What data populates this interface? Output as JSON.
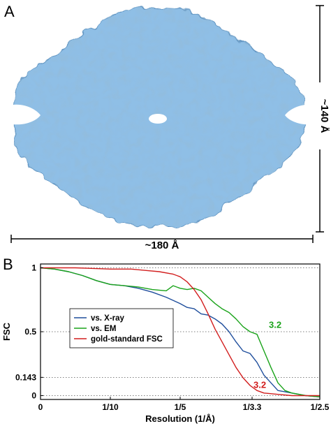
{
  "panels": {
    "a": {
      "letter": "A"
    },
    "b": {
      "letter": "B"
    }
  },
  "dimensions": {
    "width_label": "~180 Å",
    "height_label": "~140 Å"
  },
  "map_color": "#8fbfe6",
  "map_edge_color": "#5f93c0",
  "chart_data": {
    "type": "line",
    "xlabel": "Resolution (1/Å)",
    "ylabel": "FSC",
    "x_tick_labels": [
      "0",
      "1/10",
      "1/5",
      "1/3.3",
      "1/2.5"
    ],
    "x_tick_values": [
      0,
      0.1,
      0.2,
      0.303,
      0.4
    ],
    "xlim": [
      0,
      0.4
    ],
    "y_tick_labels": [
      "0",
      "0.143",
      "0.5",
      "1"
    ],
    "y_tick_values": [
      0,
      0.143,
      0.5,
      1
    ],
    "ylim": [
      -0.03,
      1.03
    ],
    "reference_lines": [
      0,
      0.143,
      0.5,
      1
    ],
    "legend_position": "left-center",
    "series": [
      {
        "name": "vs. X-ray",
        "color": "#1f4e9c",
        "x": [
          0,
          0.02,
          0.04,
          0.06,
          0.08,
          0.1,
          0.12,
          0.14,
          0.16,
          0.18,
          0.2,
          0.21,
          0.22,
          0.23,
          0.24,
          0.25,
          0.26,
          0.27,
          0.28,
          0.29,
          0.3,
          0.31,
          0.32,
          0.33,
          0.34,
          0.36,
          0.38,
          0.4
        ],
        "y": [
          1.0,
          0.99,
          0.97,
          0.94,
          0.9,
          0.87,
          0.86,
          0.84,
          0.81,
          0.77,
          0.72,
          0.69,
          0.68,
          0.64,
          0.63,
          0.6,
          0.56,
          0.5,
          0.42,
          0.35,
          0.33,
          0.26,
          0.16,
          0.1,
          0.04,
          0.02,
          0.0,
          -0.01
        ]
      },
      {
        "name": "vs. EM",
        "color": "#1aa31a",
        "x": [
          0,
          0.02,
          0.04,
          0.06,
          0.08,
          0.1,
          0.12,
          0.14,
          0.16,
          0.18,
          0.19,
          0.2,
          0.21,
          0.22,
          0.23,
          0.24,
          0.25,
          0.26,
          0.27,
          0.28,
          0.29,
          0.3,
          0.31,
          0.32,
          0.33,
          0.34,
          0.35,
          0.36,
          0.38,
          0.4
        ],
        "y": [
          1.0,
          0.99,
          0.97,
          0.94,
          0.9,
          0.87,
          0.86,
          0.85,
          0.83,
          0.82,
          0.86,
          0.84,
          0.83,
          0.84,
          0.82,
          0.77,
          0.72,
          0.68,
          0.65,
          0.6,
          0.54,
          0.5,
          0.48,
          0.35,
          0.22,
          0.1,
          0.04,
          0.02,
          0.0,
          -0.01
        ]
      },
      {
        "name": "gold-standard FSC",
        "color": "#d21e1e",
        "x": [
          0,
          0.05,
          0.1,
          0.13,
          0.15,
          0.17,
          0.19,
          0.2,
          0.21,
          0.22,
          0.23,
          0.24,
          0.25,
          0.26,
          0.27,
          0.28,
          0.29,
          0.3,
          0.31,
          0.32,
          0.34,
          0.36,
          0.38,
          0.4
        ],
        "y": [
          1.0,
          1.0,
          0.99,
          0.99,
          0.98,
          0.97,
          0.95,
          0.93,
          0.89,
          0.83,
          0.75,
          0.64,
          0.52,
          0.42,
          0.32,
          0.22,
          0.14,
          0.08,
          0.04,
          0.02,
          0.01,
          0.0,
          0.0,
          0.0
        ]
      }
    ],
    "annotations": [
      {
        "text": "3.2",
        "color": "#1aa31a",
        "x": 0.327,
        "y": 0.53
      },
      {
        "text": "3.2",
        "color": "#d21e1e",
        "x": 0.305,
        "y": 0.06
      }
    ]
  }
}
